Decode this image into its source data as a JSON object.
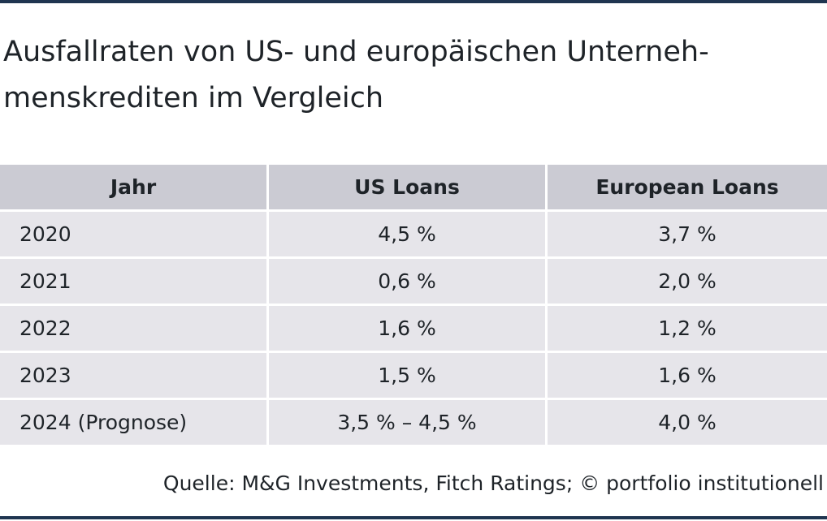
{
  "title": "Ausfallraten von US- und europäischen Unterneh-\nmenskrediten im Vergleich",
  "source": "Quelle: M&G Investments, Fitch Ratings; © portfolio institutionell",
  "colors": {
    "rule": "#1f3550",
    "header_bg": "#cbcbd3",
    "row_bg": "#e6e5ea",
    "text": "#1e2328"
  },
  "chart_data": {
    "type": "table",
    "title": "Ausfallraten von US- und europäischen Unternehmenskrediten im Vergleich",
    "columns": [
      "Jahr",
      "US Loans",
      "European Loans"
    ],
    "rows": [
      [
        "2020",
        "4,5 %",
        "3,7 %"
      ],
      [
        "2021",
        "0,6 %",
        "2,0 %"
      ],
      [
        "2022",
        "1,6 %",
        "1,2 %"
      ],
      [
        "2023",
        "1,5 %",
        "1,6 %"
      ],
      [
        "2024 (Prognose)",
        "3,5 % – 4,5 %",
        "4,0 %"
      ]
    ]
  }
}
